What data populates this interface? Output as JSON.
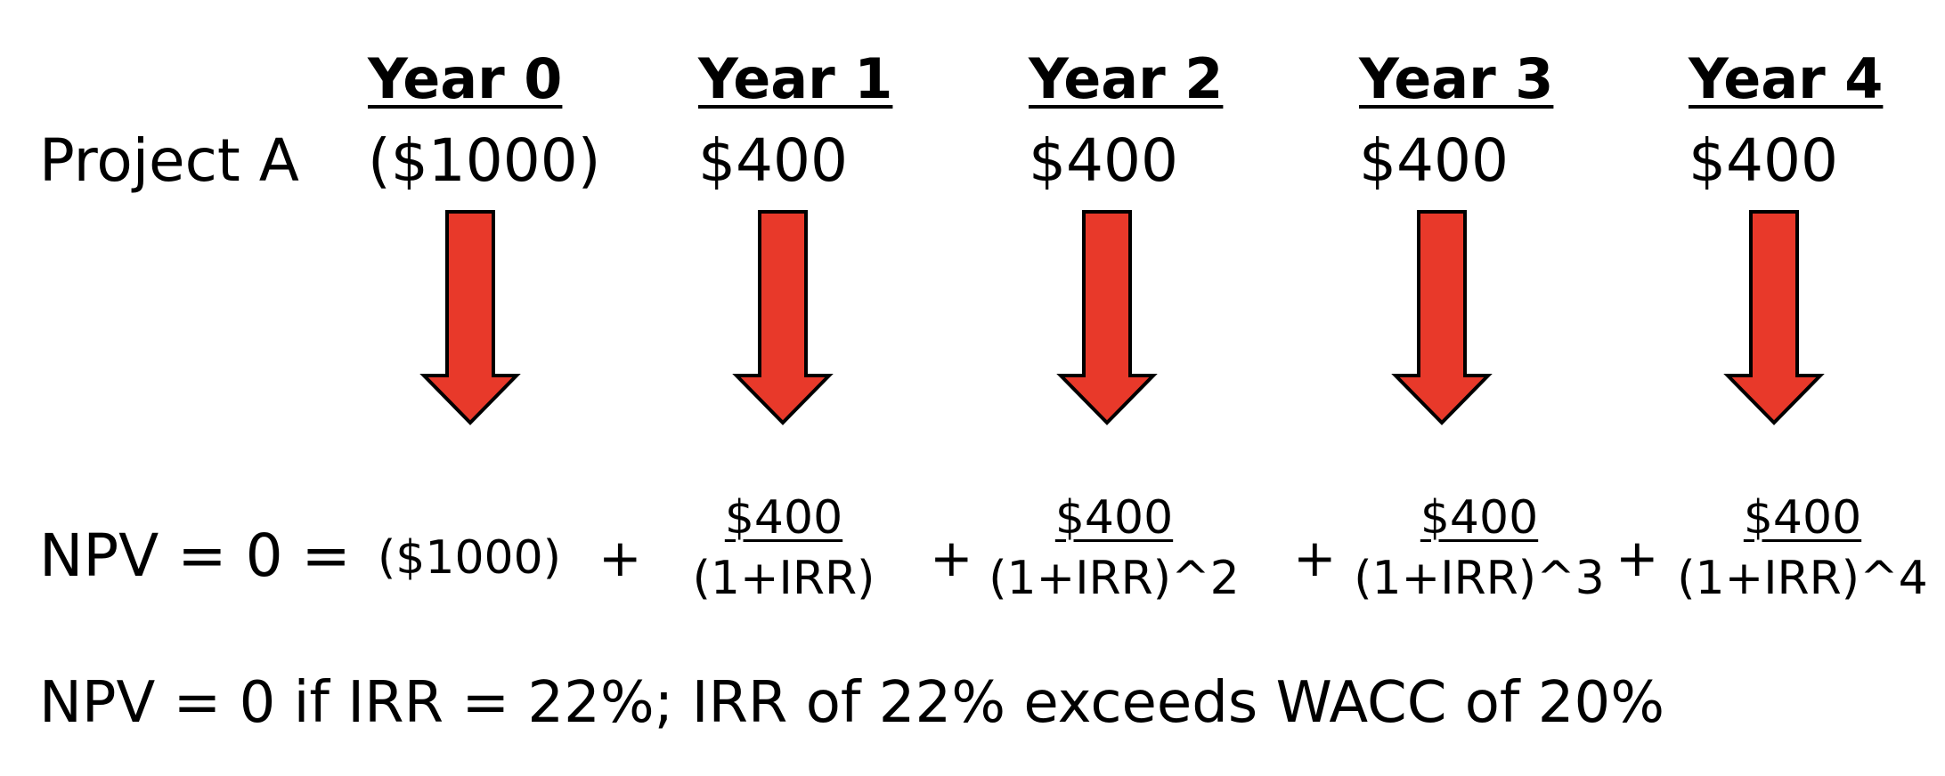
{
  "header": {
    "years": [
      "Year 0",
      "Year 1",
      "Year 2",
      "Year 3",
      "Year 4"
    ]
  },
  "project": {
    "label": "Project A",
    "cash_flows": [
      "($1000)",
      "$400",
      "$400",
      "$400",
      "$400"
    ]
  },
  "equation": {
    "label": "NPV = 0 =",
    "initial": "($1000)",
    "plus": "+",
    "terms": [
      {
        "numerator": "$400",
        "denominator": "(1+IRR)"
      },
      {
        "numerator": "$400",
        "denominator": "(1+IRR)^2"
      },
      {
        "numerator": "$400",
        "denominator": "(1+IRR)^3"
      },
      {
        "numerator": "$400",
        "denominator": "(1+IRR)^4"
      }
    ]
  },
  "conclusion": "NPV = 0  if IRR = 22%; IRR of 22% exceeds WACC of 20%",
  "colors": {
    "arrow_fill": "#E8392A",
    "arrow_stroke": "#000000"
  }
}
